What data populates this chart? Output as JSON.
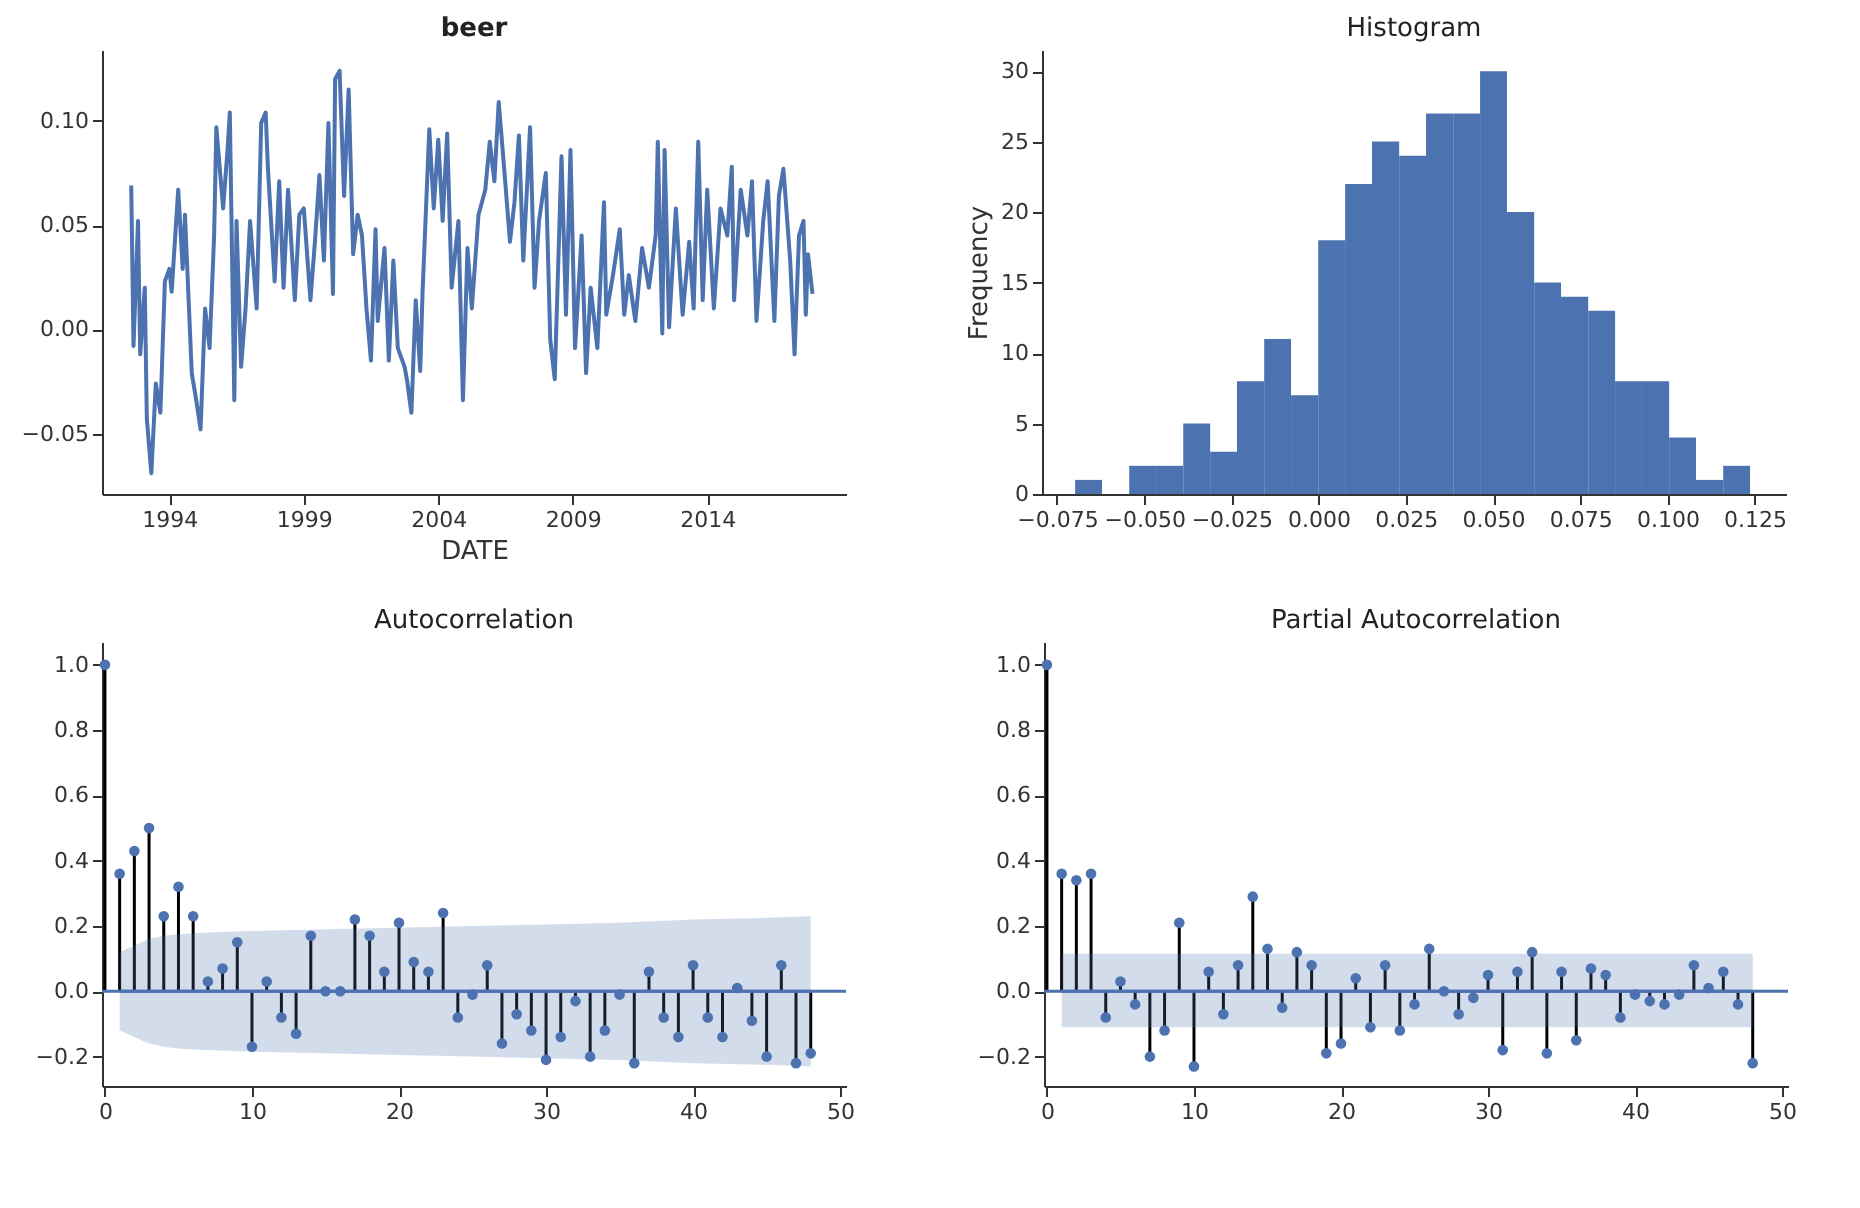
{
  "chart_data": [
    {
      "type": "line",
      "title": "beer",
      "xlabel": "DATE",
      "xlim": [
        "1991-07",
        "2019-03"
      ],
      "xticks": [
        "1994",
        "1999",
        "2004",
        "2009",
        "2014"
      ],
      "ylim": [
        -0.079,
        0.134
      ],
      "yticks": [
        {
          "value": -0.05,
          "label": "−0.05"
        },
        {
          "value": 0,
          "label": "0.00"
        },
        {
          "value": 0.05,
          "label": "0.05"
        },
        {
          "value": 0.1,
          "label": "0.10"
        }
      ],
      "x": [
        "1992-08",
        "1992-09",
        "1992-11",
        "1992-12",
        "1993-02",
        "1993-03",
        "1993-05",
        "1993-07",
        "1993-09",
        "1993-11",
        "1994-01",
        "1994-02",
        "1994-05",
        "1994-07",
        "1994-08",
        "1994-11",
        "1995-01",
        "1995-03",
        "1995-05",
        "1995-07",
        "1995-09",
        "1995-10",
        "1996-01",
        "1996-03",
        "1996-04",
        "1996-06",
        "1996-07",
        "1996-09",
        "1996-11",
        "1997-01",
        "1997-04",
        "1997-06",
        "1997-08",
        "1997-09",
        "1997-12",
        "1998-02",
        "1998-04",
        "1998-06",
        "1998-09",
        "1998-11",
        "1999-01",
        "1999-04",
        "1999-06",
        "1999-08",
        "1999-10",
        "1999-12",
        "2000-02",
        "2000-03",
        "2000-05",
        "2000-07",
        "2000-09",
        "2000-11",
        "2001-01",
        "2001-03",
        "2001-05",
        "2001-07",
        "2001-09",
        "2001-10",
        "2002-01",
        "2002-03",
        "2002-05",
        "2002-07",
        "2002-10",
        "2002-11",
        "2003-01",
        "2003-03",
        "2003-05",
        "2003-06",
        "2003-09",
        "2003-11",
        "2004-01",
        "2004-03",
        "2004-05",
        "2004-07",
        "2004-10",
        "2004-12",
        "2005-02",
        "2005-04",
        "2005-07",
        "2005-10",
        "2005-12",
        "2006-02",
        "2006-04",
        "2006-06",
        "2006-09",
        "2006-11",
        "2007-01",
        "2007-03",
        "2007-06",
        "2007-08",
        "2007-10",
        "2008-01",
        "2008-03",
        "2008-05",
        "2008-08",
        "2008-10",
        "2008-12",
        "2009-02",
        "2009-05",
        "2009-07",
        "2009-09",
        "2009-12",
        "2010-03",
        "2010-04",
        "2010-07",
        "2010-10",
        "2010-12",
        "2011-02",
        "2011-05",
        "2011-08",
        "2011-11",
        "2012-02",
        "2012-03",
        "2012-05",
        "2012-06",
        "2012-08",
        "2012-11",
        "2013-02",
        "2013-05",
        "2013-07",
        "2013-09",
        "2013-11",
        "2014-01",
        "2014-04",
        "2014-07",
        "2014-10",
        "2014-12",
        "2015-01",
        "2015-04",
        "2015-07",
        "2015-09",
        "2015-11",
        "2016-02",
        "2016-04",
        "2016-07",
        "2016-09",
        "2016-11",
        "2017-02",
        "2017-04",
        "2017-06",
        "2017-08",
        "2017-09",
        "2017-10",
        "2017-12"
      ],
      "series": [
        {
          "color": "#4c72b0",
          "values": [
            0.069,
            -0.008,
            0.052,
            -0.012,
            0.02,
            -0.043,
            -0.069,
            -0.026,
            -0.04,
            0.023,
            0.029,
            0.018,
            0.067,
            0.029,
            0.055,
            -0.021,
            -0.034,
            -0.048,
            0.01,
            -0.009,
            0.045,
            0.097,
            0.058,
            0.086,
            0.104,
            -0.034,
            0.052,
            -0.018,
            0.01,
            0.052,
            0.01,
            0.099,
            0.104,
            0.077,
            0.023,
            0.071,
            0.02,
            0.067,
            0.014,
            0.055,
            0.058,
            0.014,
            0.042,
            0.074,
            0.033,
            0.099,
            0.017,
            0.12,
            0.124,
            0.064,
            0.115,
            0.036,
            0.055,
            0.045,
            0.01,
            -0.015,
            0.048,
            0.004,
            0.039,
            -0.015,
            0.033,
            -0.009,
            -0.018,
            -0.024,
            -0.04,
            0.014,
            -0.02,
            0.017,
            0.096,
            0.058,
            0.091,
            0.052,
            0.094,
            0.02,
            0.052,
            -0.034,
            0.039,
            0.01,
            0.055,
            0.067,
            0.09,
            0.071,
            0.109,
            0.083,
            0.042,
            0.061,
            0.093,
            0.033,
            0.097,
            0.02,
            0.052,
            0.075,
            -0.005,
            -0.024,
            0.083,
            0.007,
            0.086,
            -0.009,
            0.045,
            -0.021,
            0.02,
            -0.009,
            0.061,
            0.007,
            0.026,
            0.048,
            0.007,
            0.026,
            0.004,
            0.039,
            0.02,
            0.045,
            0.09,
            -0.002,
            0.086,
            0.001,
            0.058,
            0.007,
            0.042,
            0.01,
            0.09,
            0.014,
            0.067,
            0.01,
            0.058,
            0.045,
            0.078,
            0.014,
            0.067,
            0.045,
            0.071,
            0.004,
            0.052,
            0.071,
            0.004,
            0.064,
            0.077,
            0.033,
            -0.012,
            0.045,
            0.052,
            0.007,
            0.036,
            0.017
          ]
        }
      ],
      "line_style": "solid"
    },
    {
      "type": "histogram",
      "title": "Histogram",
      "ylabel": "Frequency",
      "color": "#4c72b0",
      "bins": [
        -0.0698,
        -0.0621,
        -0.0543,
        -0.0466,
        -0.0388,
        -0.0311,
        -0.0234,
        -0.0156,
        -0.0079,
        -0.0001,
        0.0076,
        0.0153,
        0.0231,
        0.0308,
        0.0386,
        0.0463,
        0.054,
        0.0618,
        0.0695,
        0.0773,
        0.085,
        0.0927,
        0.1005,
        0.1082,
        0.116,
        0.1237
      ],
      "values": [
        1,
        0,
        2,
        2,
        5,
        3,
        8,
        11,
        7,
        18,
        22,
        25,
        24,
        27,
        27,
        30,
        20,
        15,
        14,
        13,
        8,
        8,
        4,
        1,
        2
      ],
      "xlim": [
        -0.0793,
        0.134
      ],
      "xticks": [
        {
          "value": -0.075,
          "label": "−0.075"
        },
        {
          "value": -0.05,
          "label": "−0.050"
        },
        {
          "value": -0.025,
          "label": "−0.025"
        },
        {
          "value": 0,
          "label": "0.000"
        },
        {
          "value": 0.025,
          "label": "0.025"
        },
        {
          "value": 0.05,
          "label": "0.050"
        },
        {
          "value": 0.075,
          "label": "0.075"
        },
        {
          "value": 0.1,
          "label": "0.100"
        },
        {
          "value": 0.125,
          "label": "0.125"
        }
      ],
      "ylim": [
        0,
        31.5
      ],
      "yticks": [
        0,
        5,
        10,
        15,
        20,
        25,
        30
      ]
    },
    {
      "type": "lollipop",
      "title": "Autocorrelation",
      "xlim": [
        -0.2,
        50.4
      ],
      "xticks": [
        0,
        10,
        20,
        30,
        40,
        50
      ],
      "ylim": [
        -0.29,
        1.07
      ],
      "yticks": [
        {
          "value": -0.2,
          "label": "−0.2"
        },
        {
          "value": 0,
          "label": "0.0"
        },
        {
          "value": 0.2,
          "label": "0.2"
        },
        {
          "value": 0.4,
          "label": "0.4"
        },
        {
          "value": 0.6,
          "label": "0.6"
        },
        {
          "value": 0.8,
          "label": "0.8"
        },
        {
          "value": 1,
          "label": "1.0"
        }
      ],
      "x": [
        0,
        1,
        2,
        3,
        4,
        5,
        6,
        7,
        8,
        9,
        10,
        11,
        12,
        13,
        14,
        15,
        16,
        17,
        18,
        19,
        20,
        21,
        22,
        23,
        24,
        25,
        26,
        27,
        28,
        29,
        30,
        31,
        32,
        33,
        34,
        35,
        36,
        37,
        38,
        39,
        40,
        41,
        42,
        43,
        44,
        45,
        46,
        47,
        48
      ],
      "series": [
        {
          "color": "#4c72b0",
          "values": [
            1.0,
            0.36,
            0.43,
            0.5,
            0.23,
            0.32,
            0.23,
            0.03,
            0.07,
            0.15,
            -0.17,
            0.03,
            -0.08,
            -0.13,
            0.17,
            0.0,
            0.0,
            0.22,
            0.17,
            0.06,
            0.21,
            0.09,
            0.06,
            0.24,
            -0.08,
            -0.01,
            0.08,
            -0.16,
            -0.07,
            -0.12,
            -0.21,
            -0.14,
            -0.03,
            -0.2,
            -0.12,
            -0.01,
            -0.22,
            0.06,
            -0.08,
            -0.14,
            0.08,
            -0.08,
            -0.14,
            0.01,
            -0.09,
            -0.2,
            0.08,
            -0.22,
            -0.19
          ]
        },
        {
          "type": "line",
          "marker": "none",
          "color": "#4c72b0",
          "x": [
            1,
            2,
            3,
            4,
            5,
            6,
            7,
            10,
            15,
            20,
            25,
            30,
            35,
            40,
            45,
            48
          ],
          "values": [
            0,
            0,
            0,
            0,
            0,
            0,
            0,
            0,
            0,
            0,
            0,
            0,
            0,
            0,
            0,
            0
          ],
          "upper": [
            0.12,
            0.14,
            0.16,
            0.17,
            0.175,
            0.178,
            0.18,
            0.185,
            0.19,
            0.195,
            0.2,
            0.205,
            0.21,
            0.22,
            0.225,
            0.23
          ],
          "lower": [
            -0.12,
            -0.14,
            -0.16,
            -0.17,
            -0.175,
            -0.178,
            -0.18,
            -0.185,
            -0.19,
            -0.195,
            -0.2,
            -0.205,
            -0.21,
            -0.22,
            -0.225,
            -0.23
          ]
        }
      ],
      "ref_lines": [
        {
          "axis": "y",
          "value": 0,
          "color": "#4c72b0"
        }
      ],
      "marker": "circle"
    },
    {
      "type": "lollipop",
      "title": "Partial Autocorrelation",
      "xlim": [
        -0.2,
        50.4
      ],
      "xticks": [
        0,
        10,
        20,
        30,
        40,
        50
      ],
      "ylim": [
        -0.29,
        1.07
      ],
      "yticks": [
        {
          "value": -0.2,
          "label": "−0.2"
        },
        {
          "value": 0,
          "label": "0.0"
        },
        {
          "value": 0.2,
          "label": "0.2"
        },
        {
          "value": 0.4,
          "label": "0.4"
        },
        {
          "value": 0.6,
          "label": "0.6"
        },
        {
          "value": 0.8,
          "label": "0.8"
        },
        {
          "value": 1,
          "label": "1.0"
        }
      ],
      "x": [
        0,
        1,
        2,
        3,
        4,
        5,
        6,
        7,
        8,
        9,
        10,
        11,
        12,
        13,
        14,
        15,
        16,
        17,
        18,
        19,
        20,
        21,
        22,
        23,
        24,
        25,
        26,
        27,
        28,
        29,
        30,
        31,
        32,
        33,
        34,
        35,
        36,
        37,
        38,
        39,
        40,
        41,
        42,
        43,
        44,
        45,
        46,
        47,
        48
      ],
      "series": [
        {
          "color": "#4c72b0",
          "values": [
            1.0,
            0.36,
            0.34,
            0.36,
            -0.08,
            0.03,
            -0.04,
            -0.2,
            -0.12,
            0.21,
            -0.23,
            0.06,
            -0.07,
            0.08,
            0.29,
            0.13,
            -0.05,
            0.12,
            0.08,
            -0.19,
            -0.16,
            0.04,
            -0.11,
            0.08,
            -0.12,
            -0.04,
            0.13,
            0.0,
            -0.07,
            -0.02,
            0.05,
            -0.18,
            0.06,
            0.12,
            -0.19,
            0.06,
            -0.15,
            0.07,
            0.05,
            -0.08,
            -0.01,
            -0.03,
            -0.04,
            -0.01,
            0.08,
            0.01,
            0.06,
            -0.04,
            -0.22
          ]
        },
        {
          "type": "line",
          "marker": "none",
          "color": "#4c72b0",
          "x": [
            1,
            48
          ],
          "values": [
            0,
            0
          ],
          "upper": [
            0.115,
            0.115
          ],
          "lower": [
            -0.11,
            -0.11
          ]
        }
      ],
      "ref_lines": [
        {
          "axis": "y",
          "value": 0,
          "color": "#4c72b0"
        }
      ],
      "marker": "circle"
    }
  ]
}
